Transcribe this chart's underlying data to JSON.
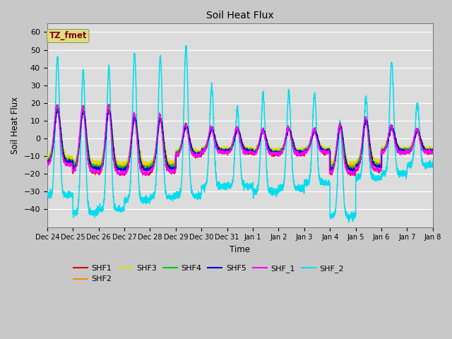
{
  "title": "Soil Heat Flux",
  "xlabel": "Time",
  "ylabel": "Soil Heat Flux",
  "ylim": [
    -50,
    65
  ],
  "yticks": [
    -40,
    -30,
    -20,
    -10,
    0,
    10,
    20,
    30,
    40,
    50,
    60
  ],
  "series_colors": {
    "SHF1": "#dd0000",
    "SHF2": "#ff8800",
    "SHF3": "#dddd00",
    "SHF4": "#00cc00",
    "SHF5": "#0000dd",
    "SHF_1": "#ff00ff",
    "SHF_2": "#00ddee"
  },
  "legend_label": "TZ_fmet",
  "legend_box_facecolor": "#dddd88",
  "legend_text_color": "#880000",
  "tick_labels": [
    "Dec 24",
    "Dec 25",
    "Dec 26",
    "Dec 27",
    "Dec 28",
    "Dec 29",
    "Dec 30",
    "Dec 31",
    "Jan 1",
    "Jan 2",
    "Jan 3",
    "Jan 4",
    "Jan 5",
    "Jan 6",
    "Jan 7",
    "Jan 8"
  ],
  "shf2_peaks": [
    46,
    39,
    40,
    48,
    46,
    52,
    29,
    17,
    25,
    26,
    25,
    9,
    23,
    43,
    20
  ],
  "shf2_troughs": [
    -32,
    -42,
    -40,
    -35,
    -33,
    -32,
    -27,
    -27,
    -30,
    -28,
    -25,
    -44,
    -22,
    -20,
    -15
  ],
  "cluster_peaks": [
    19,
    18,
    19,
    14,
    13,
    8,
    6,
    6,
    5,
    6,
    5,
    8,
    12,
    7,
    5
  ],
  "cluster_troughs": [
    -15,
    -19,
    -20,
    -20,
    -19,
    -10,
    -8,
    -8,
    -9,
    -9,
    -8,
    -20,
    -18,
    -8,
    -8
  ],
  "fig_width": 6.4,
  "fig_height": 4.8,
  "dpi": 100
}
